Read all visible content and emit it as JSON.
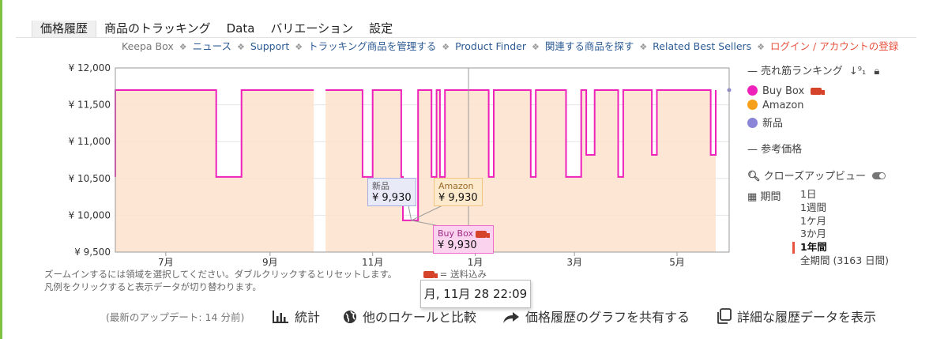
{
  "tabs": [
    "価格履歴",
    "商品のトラッキング",
    "Data",
    "バリエーション",
    "設定"
  ],
  "subnav": {
    "first": "Keepa Box",
    "links": [
      "ニュース",
      "Support",
      "トラッキング商品を管理する",
      "Product Finder",
      "関連する商品を探す",
      "Related Best Sellers"
    ],
    "login": "ログイン / アカウントの登録"
  },
  "chart_data": {
    "type": "line",
    "ylim": [
      9500,
      12000
    ],
    "yticks": [
      9500,
      10000,
      10500,
      11000,
      11500,
      12000
    ],
    "ytick_labels": [
      "¥ 9,500",
      "¥ 10,000",
      "¥ 10,500",
      "¥ 11,000",
      "¥ 11,500",
      "¥ 12,000"
    ],
    "xticks": [
      "7月",
      "9月",
      "11月",
      "1月",
      "3月",
      "5月"
    ],
    "series": [
      {
        "name": "Buy Box",
        "color": "#ee22bb",
        "fill": "#fde3cc",
        "values": [
          [
            "2024-06-01",
            10520
          ],
          [
            "2024-06-01",
            11700
          ],
          [
            "2024-07-31",
            11700
          ],
          [
            "2024-07-31",
            10520
          ],
          [
            "2024-08-15",
            10520
          ],
          [
            "2024-08-15",
            11700
          ],
          [
            "2024-09-27",
            11700
          ],
          [
            "2024-10-01",
            null
          ],
          [
            "2024-10-04",
            11700
          ],
          [
            "2024-10-26",
            11700
          ],
          [
            "2024-10-26",
            10520
          ],
          [
            "2024-11-01",
            10520
          ],
          [
            "2024-11-01",
            11700
          ],
          [
            "2024-11-18",
            11700
          ],
          [
            "2024-11-18",
            10520
          ],
          [
            "2024-11-19",
            10520
          ],
          [
            "2024-11-19",
            9930
          ],
          [
            "2024-11-28",
            9930
          ],
          [
            "2024-11-28",
            11700
          ],
          [
            "2024-12-06",
            11700
          ],
          [
            "2024-12-06",
            10520
          ],
          [
            "2024-12-09",
            10520
          ],
          [
            "2024-12-09",
            11700
          ],
          [
            "2024-12-11",
            11700
          ],
          [
            "2024-12-11",
            10520
          ],
          [
            "2024-12-14",
            10520
          ],
          [
            "2024-12-14",
            11700
          ],
          [
            "2025-01-09",
            11700
          ],
          [
            "2025-01-09",
            10520
          ],
          [
            "2025-01-12",
            10520
          ],
          [
            "2025-01-12",
            11700
          ],
          [
            "2025-02-03",
            11700
          ],
          [
            "2025-02-03",
            10520
          ],
          [
            "2025-02-06",
            10520
          ],
          [
            "2025-02-06",
            11700
          ],
          [
            "2025-02-24",
            11700
          ],
          [
            "2025-02-24",
            10520
          ],
          [
            "2025-03-05",
            10520
          ],
          [
            "2025-03-05",
            11700
          ],
          [
            "2025-03-08",
            11700
          ],
          [
            "2025-03-08",
            10820
          ],
          [
            "2025-03-13",
            10820
          ],
          [
            "2025-03-13",
            11700
          ],
          [
            "2025-03-27",
            11700
          ],
          [
            "2025-03-27",
            10520
          ],
          [
            "2025-03-30",
            10520
          ],
          [
            "2025-03-30",
            11700
          ],
          [
            "2025-04-16",
            11700
          ],
          [
            "2025-04-16",
            10820
          ],
          [
            "2025-04-19",
            10820
          ],
          [
            "2025-04-19",
            11700
          ],
          [
            "2025-05-21",
            11700
          ],
          [
            "2025-05-21",
            10820
          ],
          [
            "2025-05-24",
            10820
          ],
          [
            "2025-05-24",
            11700
          ]
        ]
      }
    ],
    "crosshair_date": "2024-12-28",
    "tooltips": {
      "new": {
        "label": "新品",
        "price": "¥ 9,930"
      },
      "amazon": {
        "label": "Amazon",
        "price": "¥ 9,930"
      },
      "buybox": {
        "label": "Buy Box",
        "price": "¥ 9,930"
      },
      "date": "月, 11月 28 22:09"
    }
  },
  "notes": {
    "line1": "ズームインするには領域を選択してください。ダブルクリックするとリセットします。",
    "line2": "凡例をクリックすると表示データが切り替わります。",
    "shipping": "= 送料込み"
  },
  "legend": {
    "rank": "— 売れ筋ランキング",
    "items": [
      {
        "label": "Buy Box",
        "color": "#ee22bb"
      },
      {
        "label": "Amazon",
        "color": "#f5a018"
      },
      {
        "label": "新品",
        "color": "#8b85d8"
      }
    ],
    "ref": "— 参考価格",
    "zoom": "クローズアップビュー",
    "range_label": "期間",
    "ranges": [
      "1日",
      "1週間",
      "1ケ月",
      "3か月",
      "1年間",
      "全期間 (3163 日間)"
    ],
    "selected_range": "1年間"
  },
  "bottom": {
    "update": "(最新のアップデート: 14 分前)",
    "stats": "統計",
    "locale": "他のロケールと比較",
    "share": "価格履歴のグラフを共有する",
    "detail": "詳細な履歴データを表示"
  }
}
